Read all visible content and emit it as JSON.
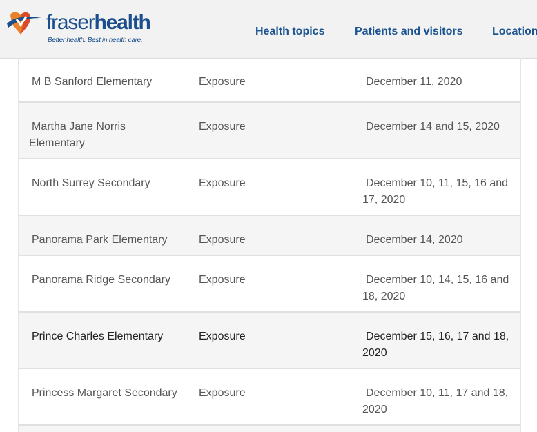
{
  "header": {
    "logo": {
      "word_part1": "fraser",
      "word_part2": "health",
      "tagline": "Better health. Best in health care.",
      "mark_colors": [
        "#e8812a",
        "#d94a2a",
        "#1a4e8c"
      ]
    },
    "nav": {
      "health_topics": "Health topics",
      "patients_visitors": "Patients and visitors",
      "locations": "Location"
    }
  },
  "table": {
    "rows": [
      {
        "school": "M B Sanford Elementary",
        "type": "Exposure",
        "dates": "December 11, 2020"
      },
      {
        "school": "Martha Jane Norris Elementary",
        "type": "Exposure",
        "dates": "December 14 and 15, 2020"
      },
      {
        "school": "North Surrey Secondary",
        "type": "Exposure",
        "dates": "December 10, 11, 15, 16 and 17, 2020"
      },
      {
        "school": "Panorama Park Elementary",
        "type": "Exposure",
        "dates": "December 14, 2020"
      },
      {
        "school": "Panorama Ridge Secondary",
        "type": "Exposure",
        "dates": "December 10, 14, 15, 16 and 18, 2020"
      },
      {
        "school": "Prince Charles Elementary",
        "type": "Exposure",
        "dates": "December 15, 16, 17 and 18, 2020"
      },
      {
        "school": "Princess Margaret Secondary",
        "type": "Exposure",
        "dates": "December 10, 11, 17 and 18, 2020"
      }
    ]
  }
}
